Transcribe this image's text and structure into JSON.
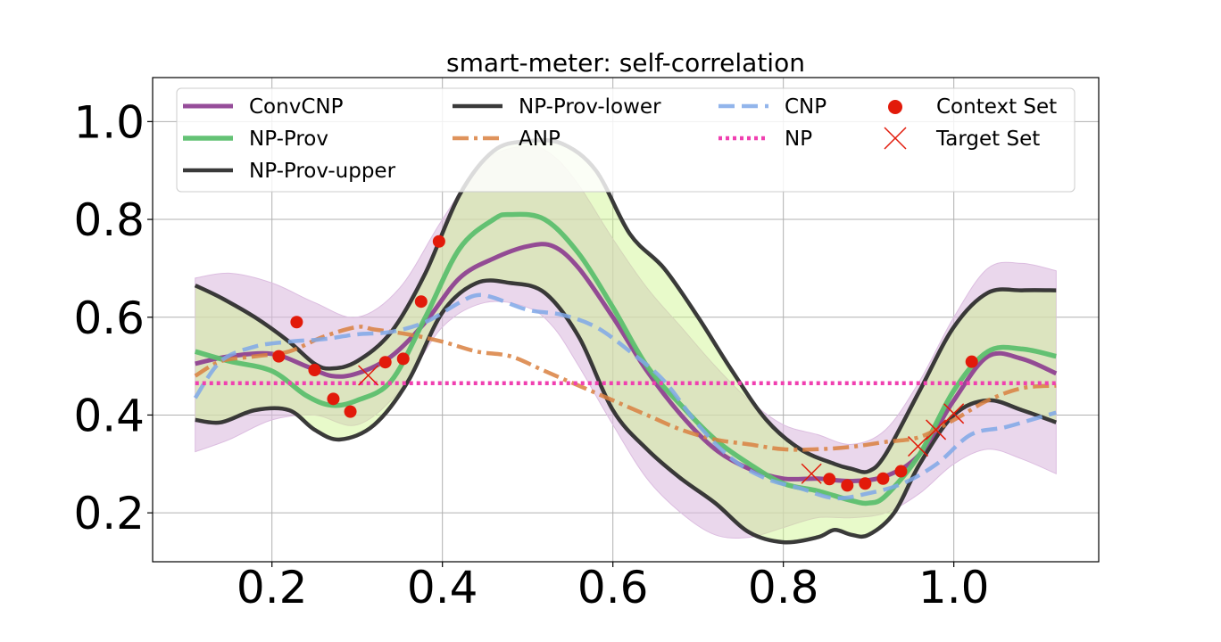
{
  "chart_data": {
    "type": "line",
    "title": "smart-meter: self-correlation",
    "xlabel": "",
    "ylabel": "",
    "xlim": [
      0.06,
      1.17
    ],
    "ylim": [
      0.1,
      1.09
    ],
    "xticks": [
      0.2,
      0.4,
      0.6,
      0.8,
      1.0
    ],
    "yticks": [
      0.2,
      0.4,
      0.6,
      0.8,
      1.0
    ],
    "xtick_labels": [
      "0.2",
      "0.4",
      "0.6",
      "0.8",
      "1.0"
    ],
    "ytick_labels": [
      "0.2",
      "0.4",
      "0.6",
      "0.8",
      "1.0"
    ],
    "grid": true,
    "legend_position": "top",
    "colors": {
      "convcnp": "#8b3a8f",
      "convcnp_band": "#dcbde0",
      "np_prov": "#5cbf6e",
      "np_prov_band": "#c8e6a8",
      "bound": "#2f2f2f",
      "anp": "#d98040",
      "cnp": "#7fa8e8",
      "np": "#f040b0",
      "points": "#e21a0a"
    },
    "series": [
      {
        "name": "ConvCNP",
        "style": "solid",
        "x": [
          0.11,
          0.15,
          0.2,
          0.24,
          0.27,
          0.3,
          0.34,
          0.38,
          0.42,
          0.46,
          0.5,
          0.53,
          0.56,
          0.6,
          0.64,
          0.68,
          0.72,
          0.76,
          0.8,
          0.84,
          0.88,
          0.92,
          0.96,
          1.0,
          1.04,
          1.08,
          1.12
        ],
        "y": [
          0.505,
          0.52,
          0.525,
          0.5,
          0.48,
          0.485,
          0.52,
          0.59,
          0.68,
          0.72,
          0.745,
          0.745,
          0.7,
          0.6,
          0.49,
          0.4,
          0.33,
          0.29,
          0.27,
          0.27,
          0.265,
          0.275,
          0.32,
          0.43,
          0.52,
          0.515,
          0.485
        ]
      },
      {
        "name": "NP-Prov",
        "style": "solid",
        "x": [
          0.11,
          0.15,
          0.2,
          0.24,
          0.27,
          0.3,
          0.34,
          0.38,
          0.42,
          0.46,
          0.48,
          0.52,
          0.56,
          0.6,
          0.64,
          0.68,
          0.72,
          0.76,
          0.8,
          0.84,
          0.88,
          0.9,
          0.92,
          0.96,
          1.0,
          1.04,
          1.08,
          1.12
        ],
        "y": [
          0.53,
          0.51,
          0.49,
          0.44,
          0.42,
          0.43,
          0.47,
          0.6,
          0.74,
          0.8,
          0.81,
          0.8,
          0.73,
          0.62,
          0.5,
          0.42,
          0.35,
          0.3,
          0.26,
          0.245,
          0.225,
          0.22,
          0.235,
          0.32,
          0.45,
          0.53,
          0.535,
          0.52
        ]
      },
      {
        "name": "NP-Prov-upper",
        "style": "solid",
        "x": [
          0.11,
          0.14,
          0.18,
          0.22,
          0.25,
          0.27,
          0.3,
          0.34,
          0.38,
          0.42,
          0.46,
          0.5,
          0.54,
          0.58,
          0.62,
          0.66,
          0.7,
          0.74,
          0.78,
          0.82,
          0.86,
          0.88,
          0.9,
          0.92,
          0.96,
          1.0,
          1.04,
          1.08,
          1.12
        ],
        "y": [
          0.665,
          0.64,
          0.6,
          0.55,
          0.505,
          0.495,
          0.51,
          0.57,
          0.69,
          0.85,
          0.94,
          0.96,
          0.955,
          0.9,
          0.77,
          0.7,
          0.6,
          0.49,
          0.39,
          0.33,
          0.3,
          0.29,
          0.285,
          0.32,
          0.45,
          0.58,
          0.65,
          0.655,
          0.655
        ]
      },
      {
        "name": "NP-Prov-lower",
        "style": "solid",
        "x": [
          0.11,
          0.14,
          0.18,
          0.22,
          0.25,
          0.28,
          0.32,
          0.36,
          0.4,
          0.44,
          0.48,
          0.52,
          0.56,
          0.6,
          0.64,
          0.68,
          0.72,
          0.76,
          0.8,
          0.84,
          0.86,
          0.88,
          0.9,
          0.93,
          0.96,
          1.0,
          1.04,
          1.08,
          1.12
        ],
        "y": [
          0.39,
          0.385,
          0.41,
          0.41,
          0.37,
          0.35,
          0.38,
          0.47,
          0.61,
          0.67,
          0.67,
          0.65,
          0.56,
          0.41,
          0.33,
          0.27,
          0.22,
          0.16,
          0.14,
          0.15,
          0.165,
          0.155,
          0.155,
          0.2,
          0.3,
          0.4,
          0.43,
          0.41,
          0.385
        ]
      },
      {
        "name": "ANP",
        "style": "dashdot",
        "x": [
          0.11,
          0.14,
          0.18,
          0.22,
          0.26,
          0.3,
          0.32,
          0.36,
          0.4,
          0.44,
          0.48,
          0.52,
          0.56,
          0.6,
          0.64,
          0.68,
          0.72,
          0.76,
          0.8,
          0.84,
          0.88,
          0.92,
          0.96,
          1.0,
          1.04,
          1.08,
          1.12
        ],
        "y": [
          0.48,
          0.51,
          0.52,
          0.53,
          0.56,
          0.58,
          0.575,
          0.565,
          0.55,
          0.53,
          0.52,
          0.49,
          0.46,
          0.43,
          0.4,
          0.37,
          0.35,
          0.34,
          0.33,
          0.33,
          0.335,
          0.345,
          0.355,
          0.39,
          0.43,
          0.455,
          0.46
        ]
      },
      {
        "name": "CNP",
        "style": "dashed",
        "x": [
          0.11,
          0.14,
          0.18,
          0.22,
          0.26,
          0.3,
          0.34,
          0.38,
          0.42,
          0.44,
          0.46,
          0.5,
          0.54,
          0.58,
          0.62,
          0.66,
          0.7,
          0.74,
          0.78,
          0.82,
          0.86,
          0.9,
          0.94,
          0.98,
          1.02,
          1.06,
          1.1,
          1.12
        ],
        "y": [
          0.435,
          0.51,
          0.54,
          0.55,
          0.555,
          0.565,
          0.57,
          0.59,
          0.63,
          0.645,
          0.64,
          0.615,
          0.605,
          0.58,
          0.53,
          0.47,
          0.38,
          0.31,
          0.27,
          0.25,
          0.23,
          0.24,
          0.26,
          0.3,
          0.36,
          0.375,
          0.395,
          0.405
        ]
      },
      {
        "name": "NP",
        "style": "dotted",
        "x": [
          0.11,
          1.12
        ],
        "y": [
          0.465,
          0.465
        ]
      },
      {
        "name": "Context Set",
        "style": "markers-circle",
        "x": [
          0.208,
          0.229,
          0.25,
          0.272,
          0.292,
          0.333,
          0.354,
          0.375,
          0.396,
          0.854,
          0.875,
          0.896,
          0.917,
          0.938,
          1.021
        ],
        "y": [
          0.52,
          0.59,
          0.492,
          0.433,
          0.407,
          0.508,
          0.515,
          0.632,
          0.755,
          0.269,
          0.256,
          0.26,
          0.27,
          0.285,
          0.509
        ]
      },
      {
        "name": "Target Set",
        "style": "markers-x",
        "x": [
          0.313,
          0.833,
          0.958,
          0.979,
          1.0
        ],
        "y": [
          0.481,
          0.28,
          0.336,
          0.37,
          0.403
        ]
      }
    ],
    "bands": [
      {
        "series": "ConvCNP",
        "x": [
          0.11,
          0.15,
          0.2,
          0.25,
          0.3,
          0.35,
          0.4,
          0.45,
          0.5,
          0.53,
          0.56,
          0.6,
          0.64,
          0.68,
          0.72,
          0.76,
          0.8,
          0.84,
          0.88,
          0.92,
          0.96,
          1.0,
          1.04,
          1.08,
          1.12
        ],
        "lower": [
          0.325,
          0.35,
          0.39,
          0.4,
          0.38,
          0.45,
          0.58,
          0.63,
          0.62,
          0.58,
          0.5,
          0.38,
          0.27,
          0.2,
          0.155,
          0.15,
          0.17,
          0.19,
          0.19,
          0.2,
          0.24,
          0.3,
          0.33,
          0.31,
          0.28
        ],
        "upper": [
          0.68,
          0.69,
          0.67,
          0.63,
          0.6,
          0.66,
          0.8,
          0.92,
          0.95,
          0.93,
          0.87,
          0.76,
          0.66,
          0.58,
          0.5,
          0.43,
          0.38,
          0.36,
          0.34,
          0.37,
          0.47,
          0.6,
          0.7,
          0.71,
          0.695
        ]
      },
      {
        "series": "NP-Prov",
        "upper_series": "NP-Prov-upper",
        "lower_series": "NP-Prov-lower"
      }
    ]
  }
}
